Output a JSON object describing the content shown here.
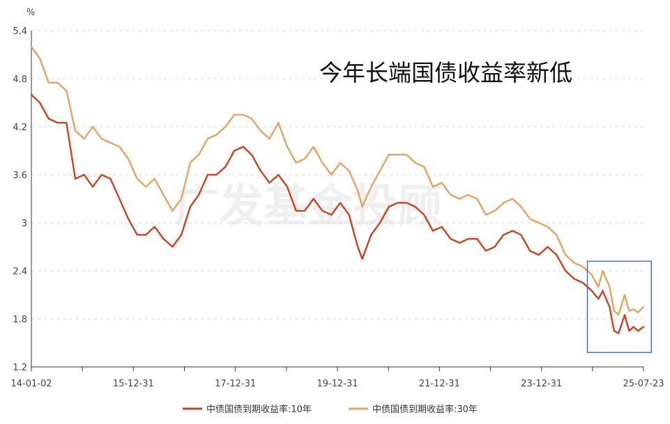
{
  "chart_data": {
    "type": "line",
    "title": "今年长端国债收益率新低",
    "y_unit": "%",
    "ylim": [
      1.2,
      5.4
    ],
    "y_ticks": [
      "1.2",
      "1.8",
      "2.4",
      "3",
      "3.6",
      "4.2",
      "4.8",
      "5.4"
    ],
    "x_tick_labels": [
      "14-01-02",
      "15-12-31",
      "17-12-31",
      "19-12-31",
      "21-12-31",
      "23-12-31",
      "25-07-23"
    ],
    "x_range": [
      "2014-01-02",
      "2025-07-23"
    ],
    "grid": "horizontal dashed",
    "legend_position": "bottom",
    "highlight_box": {
      "from": "2024-07-01",
      "to": "2025-09-15",
      "y_range": [
        1.38,
        2.52
      ],
      "color": "#4472c4"
    },
    "watermark": "广发基金投顾",
    "series": [
      {
        "name": "中债国债到期收益率:10年",
        "color": "#d2401a",
        "points": [
          [
            "2014-01-02",
            4.6
          ],
          [
            "2014-03-01",
            4.5
          ],
          [
            "2014-05-01",
            4.3
          ],
          [
            "2014-07-01",
            4.25
          ],
          [
            "2014-09-01",
            4.25
          ],
          [
            "2014-11-01",
            3.55
          ],
          [
            "2015-01-01",
            3.6
          ],
          [
            "2015-03-01",
            3.45
          ],
          [
            "2015-05-01",
            3.6
          ],
          [
            "2015-07-01",
            3.55
          ],
          [
            "2015-09-01",
            3.3
          ],
          [
            "2015-11-01",
            3.05
          ],
          [
            "2016-01-01",
            2.85
          ],
          [
            "2016-03-01",
            2.85
          ],
          [
            "2016-05-01",
            2.95
          ],
          [
            "2016-07-01",
            2.8
          ],
          [
            "2016-09-01",
            2.7
          ],
          [
            "2016-11-01",
            2.85
          ],
          [
            "2017-01-01",
            3.2
          ],
          [
            "2017-03-01",
            3.35
          ],
          [
            "2017-05-01",
            3.6
          ],
          [
            "2017-07-01",
            3.6
          ],
          [
            "2017-09-01",
            3.7
          ],
          [
            "2017-11-01",
            3.9
          ],
          [
            "2018-01-01",
            3.95
          ],
          [
            "2018-03-01",
            3.85
          ],
          [
            "2018-05-01",
            3.65
          ],
          [
            "2018-07-01",
            3.5
          ],
          [
            "2018-09-01",
            3.6
          ],
          [
            "2018-11-01",
            3.45
          ],
          [
            "2019-01-01",
            3.15
          ],
          [
            "2019-03-01",
            3.15
          ],
          [
            "2019-05-01",
            3.3
          ],
          [
            "2019-07-01",
            3.15
          ],
          [
            "2019-09-01",
            3.1
          ],
          [
            "2019-11-01",
            3.25
          ],
          [
            "2020-01-01",
            3.1
          ],
          [
            "2020-03-01",
            2.7
          ],
          [
            "2020-04-01",
            2.55
          ],
          [
            "2020-06-01",
            2.85
          ],
          [
            "2020-08-01",
            3.0
          ],
          [
            "2020-10-01",
            3.2
          ],
          [
            "2020-12-01",
            3.25
          ],
          [
            "2021-02-01",
            3.25
          ],
          [
            "2021-04-01",
            3.2
          ],
          [
            "2021-06-01",
            3.1
          ],
          [
            "2021-08-01",
            2.9
          ],
          [
            "2021-10-01",
            2.95
          ],
          [
            "2021-12-01",
            2.8
          ],
          [
            "2022-02-01",
            2.75
          ],
          [
            "2022-04-01",
            2.8
          ],
          [
            "2022-06-01",
            2.8
          ],
          [
            "2022-08-01",
            2.65
          ],
          [
            "2022-10-01",
            2.7
          ],
          [
            "2022-12-01",
            2.85
          ],
          [
            "2023-02-01",
            2.9
          ],
          [
            "2023-04-01",
            2.85
          ],
          [
            "2023-06-01",
            2.65
          ],
          [
            "2023-08-01",
            2.6
          ],
          [
            "2023-10-01",
            2.7
          ],
          [
            "2023-12-01",
            2.6
          ],
          [
            "2024-02-01",
            2.4
          ],
          [
            "2024-04-01",
            2.3
          ],
          [
            "2024-06-01",
            2.25
          ],
          [
            "2024-08-01",
            2.15
          ],
          [
            "2024-09-15",
            2.05
          ],
          [
            "2024-10-15",
            2.15
          ],
          [
            "2024-12-01",
            1.95
          ],
          [
            "2025-01-01",
            1.65
          ],
          [
            "2025-02-01",
            1.62
          ],
          [
            "2025-03-15",
            1.85
          ],
          [
            "2025-04-15",
            1.65
          ],
          [
            "2025-05-15",
            1.7
          ],
          [
            "2025-06-15",
            1.65
          ],
          [
            "2025-07-23",
            1.7
          ]
        ]
      },
      {
        "name": "中债国债到期收益率:30年",
        "color": "#e8a25e",
        "points": [
          [
            "2014-01-02",
            5.2
          ],
          [
            "2014-03-01",
            5.05
          ],
          [
            "2014-05-01",
            4.75
          ],
          [
            "2014-07-01",
            4.75
          ],
          [
            "2014-09-01",
            4.65
          ],
          [
            "2014-11-01",
            4.15
          ],
          [
            "2015-01-01",
            4.05
          ],
          [
            "2015-03-01",
            4.2
          ],
          [
            "2015-05-01",
            4.05
          ],
          [
            "2015-07-01",
            4.0
          ],
          [
            "2015-09-01",
            3.95
          ],
          [
            "2015-11-01",
            3.8
          ],
          [
            "2016-01-01",
            3.55
          ],
          [
            "2016-03-01",
            3.45
          ],
          [
            "2016-05-01",
            3.55
          ],
          [
            "2016-07-01",
            3.35
          ],
          [
            "2016-09-01",
            3.15
          ],
          [
            "2016-11-01",
            3.3
          ],
          [
            "2017-01-01",
            3.75
          ],
          [
            "2017-03-01",
            3.85
          ],
          [
            "2017-05-01",
            4.05
          ],
          [
            "2017-07-01",
            4.1
          ],
          [
            "2017-09-01",
            4.2
          ],
          [
            "2017-11-01",
            4.35
          ],
          [
            "2018-01-01",
            4.35
          ],
          [
            "2018-03-01",
            4.3
          ],
          [
            "2018-05-01",
            4.15
          ],
          [
            "2018-07-01",
            4.05
          ],
          [
            "2018-09-01",
            4.25
          ],
          [
            "2018-11-01",
            3.95
          ],
          [
            "2019-01-01",
            3.75
          ],
          [
            "2019-03-01",
            3.8
          ],
          [
            "2019-05-01",
            3.95
          ],
          [
            "2019-07-01",
            3.75
          ],
          [
            "2019-09-01",
            3.6
          ],
          [
            "2019-11-01",
            3.75
          ],
          [
            "2020-01-01",
            3.65
          ],
          [
            "2020-03-01",
            3.4
          ],
          [
            "2020-04-01",
            3.2
          ],
          [
            "2020-06-01",
            3.45
          ],
          [
            "2020-08-01",
            3.65
          ],
          [
            "2020-10-01",
            3.85
          ],
          [
            "2020-12-01",
            3.85
          ],
          [
            "2021-02-01",
            3.85
          ],
          [
            "2021-04-01",
            3.75
          ],
          [
            "2021-06-01",
            3.7
          ],
          [
            "2021-08-01",
            3.45
          ],
          [
            "2021-10-01",
            3.5
          ],
          [
            "2021-12-01",
            3.35
          ],
          [
            "2022-02-01",
            3.3
          ],
          [
            "2022-04-01",
            3.35
          ],
          [
            "2022-06-01",
            3.3
          ],
          [
            "2022-08-01",
            3.1
          ],
          [
            "2022-10-01",
            3.15
          ],
          [
            "2022-12-01",
            3.25
          ],
          [
            "2023-02-01",
            3.3
          ],
          [
            "2023-04-01",
            3.2
          ],
          [
            "2023-06-01",
            3.05
          ],
          [
            "2023-08-01",
            3.0
          ],
          [
            "2023-10-01",
            2.95
          ],
          [
            "2023-12-01",
            2.85
          ],
          [
            "2024-02-01",
            2.6
          ],
          [
            "2024-04-01",
            2.5
          ],
          [
            "2024-06-01",
            2.45
          ],
          [
            "2024-08-01",
            2.35
          ],
          [
            "2024-09-15",
            2.2
          ],
          [
            "2024-10-15",
            2.4
          ],
          [
            "2024-12-01",
            2.2
          ],
          [
            "2025-01-01",
            1.9
          ],
          [
            "2025-02-01",
            1.85
          ],
          [
            "2025-03-15",
            2.1
          ],
          [
            "2025-04-15",
            1.9
          ],
          [
            "2025-05-15",
            1.92
          ],
          [
            "2025-06-15",
            1.88
          ],
          [
            "2025-07-23",
            1.95
          ]
        ]
      }
    ]
  }
}
